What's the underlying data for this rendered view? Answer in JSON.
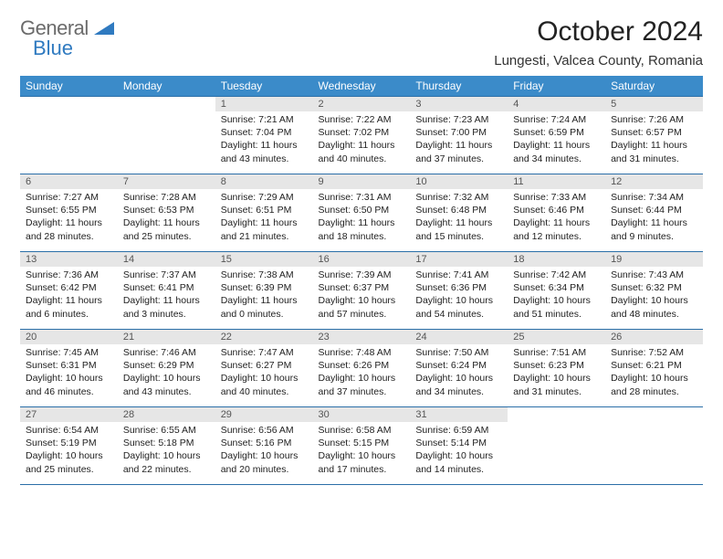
{
  "brand": {
    "text1": "General",
    "text2": "Blue"
  },
  "title": "October 2024",
  "location": "Lungesti, Valcea County, Romania",
  "colors": {
    "header_bg": "#3b8bc9",
    "header_text": "#ffffff",
    "daynum_bg": "#e6e6e6",
    "border": "#2b6fa8",
    "brand_gray": "#6b6b6b",
    "brand_blue": "#2f7ac0"
  },
  "day_headers": [
    "Sunday",
    "Monday",
    "Tuesday",
    "Wednesday",
    "Thursday",
    "Friday",
    "Saturday"
  ],
  "weeks": [
    [
      {
        "n": "",
        "sr": "",
        "ss": "",
        "dl": ""
      },
      {
        "n": "",
        "sr": "",
        "ss": "",
        "dl": ""
      },
      {
        "n": "1",
        "sr": "Sunrise: 7:21 AM",
        "ss": "Sunset: 7:04 PM",
        "dl": "Daylight: 11 hours and 43 minutes."
      },
      {
        "n": "2",
        "sr": "Sunrise: 7:22 AM",
        "ss": "Sunset: 7:02 PM",
        "dl": "Daylight: 11 hours and 40 minutes."
      },
      {
        "n": "3",
        "sr": "Sunrise: 7:23 AM",
        "ss": "Sunset: 7:00 PM",
        "dl": "Daylight: 11 hours and 37 minutes."
      },
      {
        "n": "4",
        "sr": "Sunrise: 7:24 AM",
        "ss": "Sunset: 6:59 PM",
        "dl": "Daylight: 11 hours and 34 minutes."
      },
      {
        "n": "5",
        "sr": "Sunrise: 7:26 AM",
        "ss": "Sunset: 6:57 PM",
        "dl": "Daylight: 11 hours and 31 minutes."
      }
    ],
    [
      {
        "n": "6",
        "sr": "Sunrise: 7:27 AM",
        "ss": "Sunset: 6:55 PM",
        "dl": "Daylight: 11 hours and 28 minutes."
      },
      {
        "n": "7",
        "sr": "Sunrise: 7:28 AM",
        "ss": "Sunset: 6:53 PM",
        "dl": "Daylight: 11 hours and 25 minutes."
      },
      {
        "n": "8",
        "sr": "Sunrise: 7:29 AM",
        "ss": "Sunset: 6:51 PM",
        "dl": "Daylight: 11 hours and 21 minutes."
      },
      {
        "n": "9",
        "sr": "Sunrise: 7:31 AM",
        "ss": "Sunset: 6:50 PM",
        "dl": "Daylight: 11 hours and 18 minutes."
      },
      {
        "n": "10",
        "sr": "Sunrise: 7:32 AM",
        "ss": "Sunset: 6:48 PM",
        "dl": "Daylight: 11 hours and 15 minutes."
      },
      {
        "n": "11",
        "sr": "Sunrise: 7:33 AM",
        "ss": "Sunset: 6:46 PM",
        "dl": "Daylight: 11 hours and 12 minutes."
      },
      {
        "n": "12",
        "sr": "Sunrise: 7:34 AM",
        "ss": "Sunset: 6:44 PM",
        "dl": "Daylight: 11 hours and 9 minutes."
      }
    ],
    [
      {
        "n": "13",
        "sr": "Sunrise: 7:36 AM",
        "ss": "Sunset: 6:42 PM",
        "dl": "Daylight: 11 hours and 6 minutes."
      },
      {
        "n": "14",
        "sr": "Sunrise: 7:37 AM",
        "ss": "Sunset: 6:41 PM",
        "dl": "Daylight: 11 hours and 3 minutes."
      },
      {
        "n": "15",
        "sr": "Sunrise: 7:38 AM",
        "ss": "Sunset: 6:39 PM",
        "dl": "Daylight: 11 hours and 0 minutes."
      },
      {
        "n": "16",
        "sr": "Sunrise: 7:39 AM",
        "ss": "Sunset: 6:37 PM",
        "dl": "Daylight: 10 hours and 57 minutes."
      },
      {
        "n": "17",
        "sr": "Sunrise: 7:41 AM",
        "ss": "Sunset: 6:36 PM",
        "dl": "Daylight: 10 hours and 54 minutes."
      },
      {
        "n": "18",
        "sr": "Sunrise: 7:42 AM",
        "ss": "Sunset: 6:34 PM",
        "dl": "Daylight: 10 hours and 51 minutes."
      },
      {
        "n": "19",
        "sr": "Sunrise: 7:43 AM",
        "ss": "Sunset: 6:32 PM",
        "dl": "Daylight: 10 hours and 48 minutes."
      }
    ],
    [
      {
        "n": "20",
        "sr": "Sunrise: 7:45 AM",
        "ss": "Sunset: 6:31 PM",
        "dl": "Daylight: 10 hours and 46 minutes."
      },
      {
        "n": "21",
        "sr": "Sunrise: 7:46 AM",
        "ss": "Sunset: 6:29 PM",
        "dl": "Daylight: 10 hours and 43 minutes."
      },
      {
        "n": "22",
        "sr": "Sunrise: 7:47 AM",
        "ss": "Sunset: 6:27 PM",
        "dl": "Daylight: 10 hours and 40 minutes."
      },
      {
        "n": "23",
        "sr": "Sunrise: 7:48 AM",
        "ss": "Sunset: 6:26 PM",
        "dl": "Daylight: 10 hours and 37 minutes."
      },
      {
        "n": "24",
        "sr": "Sunrise: 7:50 AM",
        "ss": "Sunset: 6:24 PM",
        "dl": "Daylight: 10 hours and 34 minutes."
      },
      {
        "n": "25",
        "sr": "Sunrise: 7:51 AM",
        "ss": "Sunset: 6:23 PM",
        "dl": "Daylight: 10 hours and 31 minutes."
      },
      {
        "n": "26",
        "sr": "Sunrise: 7:52 AM",
        "ss": "Sunset: 6:21 PM",
        "dl": "Daylight: 10 hours and 28 minutes."
      }
    ],
    [
      {
        "n": "27",
        "sr": "Sunrise: 6:54 AM",
        "ss": "Sunset: 5:19 PM",
        "dl": "Daylight: 10 hours and 25 minutes."
      },
      {
        "n": "28",
        "sr": "Sunrise: 6:55 AM",
        "ss": "Sunset: 5:18 PM",
        "dl": "Daylight: 10 hours and 22 minutes."
      },
      {
        "n": "29",
        "sr": "Sunrise: 6:56 AM",
        "ss": "Sunset: 5:16 PM",
        "dl": "Daylight: 10 hours and 20 minutes."
      },
      {
        "n": "30",
        "sr": "Sunrise: 6:58 AM",
        "ss": "Sunset: 5:15 PM",
        "dl": "Daylight: 10 hours and 17 minutes."
      },
      {
        "n": "31",
        "sr": "Sunrise: 6:59 AM",
        "ss": "Sunset: 5:14 PM",
        "dl": "Daylight: 10 hours and 14 minutes."
      },
      {
        "n": "",
        "sr": "",
        "ss": "",
        "dl": ""
      },
      {
        "n": "",
        "sr": "",
        "ss": "",
        "dl": ""
      }
    ]
  ]
}
